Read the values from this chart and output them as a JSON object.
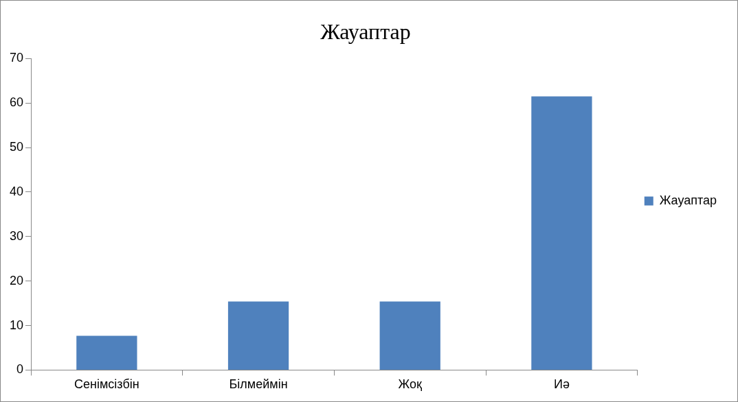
{
  "chart_data": {
    "type": "bar",
    "title": "Жауаптар",
    "categories": [
      "Сенімсізбін",
      "Білмеймін",
      "Жоқ",
      "Иә"
    ],
    "series": [
      {
        "name": "Жауаптар",
        "color": "#4f81bd",
        "values": [
          7.7,
          15.4,
          15.4,
          61.5
        ]
      }
    ],
    "ylim": [
      0,
      70
    ],
    "yticks": [
      0,
      10,
      20,
      30,
      40,
      50,
      60,
      70
    ],
    "grid": false,
    "legend": "right"
  }
}
